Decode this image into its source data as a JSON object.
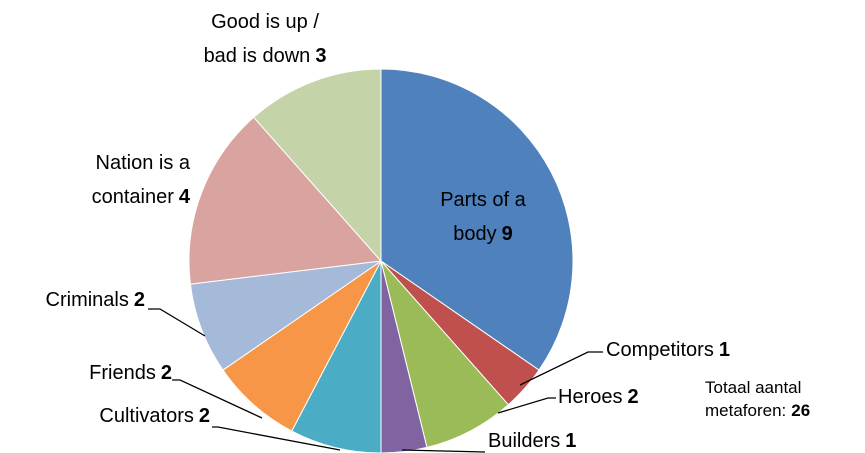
{
  "chart_data": {
    "type": "pie",
    "categories": [
      "Parts of a body",
      "Competitors",
      "Heroes",
      "Builders",
      "Cultivators",
      "Friends",
      "Criminals",
      "Nation is a container",
      "Good is up / bad is down"
    ],
    "values": [
      9,
      1,
      2,
      1,
      2,
      2,
      2,
      4,
      3
    ],
    "colors": [
      "#4f81bd",
      "#c0504d",
      "#9bbb59",
      "#8064a2",
      "#4bacc6",
      "#f79646",
      "#a5b9d9",
      "#d9a3a0",
      "#c4d4a8"
    ],
    "annotation": "Totaal aantal metaforen:",
    "total": 26
  }
}
